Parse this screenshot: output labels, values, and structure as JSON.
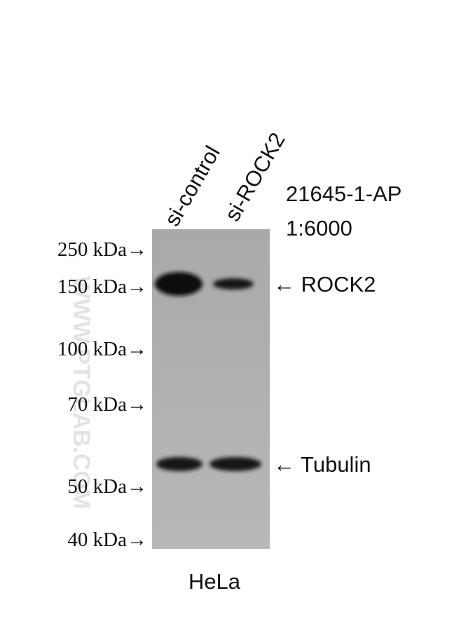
{
  "lanes": [
    "si-control",
    "si-ROCK2"
  ],
  "antibody": {
    "catalog": "21645-1-AP",
    "dilution": "1:6000"
  },
  "markers": [
    "250 kDa→",
    "150 kDa→",
    "100 kDa→",
    "70 kDa→",
    "50 kDa→",
    "40 kDa→"
  ],
  "bands": [
    "← ROCK2",
    "← Tubulin"
  ],
  "cell_line": "HeLa",
  "watermark": "WWW.PTGLAB.COM"
}
